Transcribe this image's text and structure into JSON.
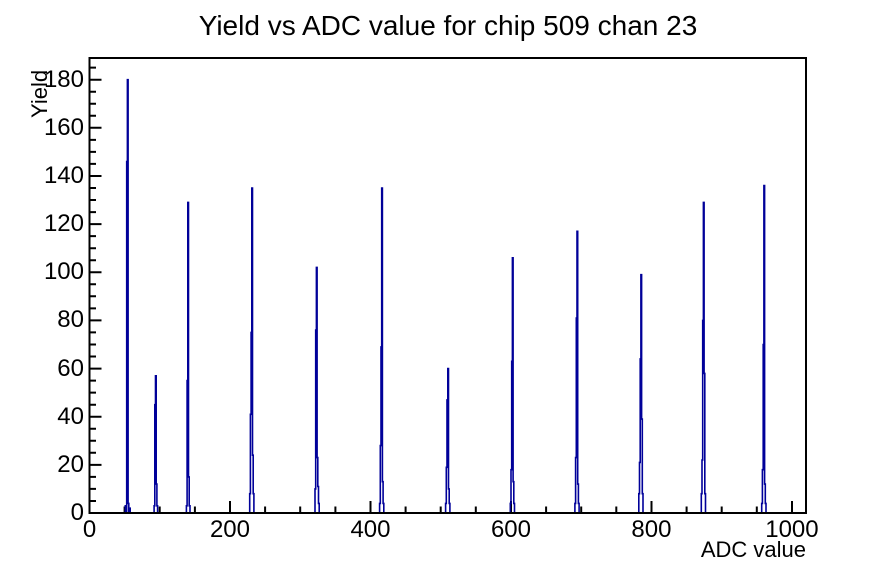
{
  "chart_data": {
    "type": "line",
    "subtype": "root-histogram",
    "title": "Yield vs ADC value for chip 509 chan 23",
    "xlabel": "ADC value",
    "ylabel": "Yield",
    "xlim": [
      0,
      1020
    ],
    "ylim": [
      0,
      189
    ],
    "x_major_ticks": [
      0,
      200,
      400,
      600,
      800,
      1000
    ],
    "x_minor_step": 50,
    "y_major_ticks": [
      0,
      20,
      40,
      60,
      80,
      100,
      120,
      140,
      160,
      180
    ],
    "y_minor_step": 5,
    "grid": "off",
    "legend": "none",
    "line_color": "#000099",
    "frame_color": "#000000",
    "background_color": "#ffffff",
    "peaks": [
      {
        "center": 54,
        "height": 180,
        "bins": [
          [
            51,
            3
          ],
          [
            53,
            146
          ],
          [
            54,
            180
          ],
          [
            55,
            4
          ],
          [
            57,
            2
          ]
        ]
      },
      {
        "center": 94,
        "height": 57,
        "bins": [
          [
            92,
            3
          ],
          [
            93,
            45
          ],
          [
            94,
            57
          ],
          [
            95,
            12
          ],
          [
            96,
            3
          ]
        ]
      },
      {
        "center": 140,
        "height": 129,
        "bins": [
          [
            138,
            3
          ],
          [
            139,
            55
          ],
          [
            140,
            129
          ],
          [
            141,
            15
          ],
          [
            142,
            3
          ]
        ]
      },
      {
        "center": 231,
        "height": 135,
        "bins": [
          [
            228,
            8
          ],
          [
            229,
            41
          ],
          [
            230,
            75
          ],
          [
            231,
            135
          ],
          [
            232,
            24
          ],
          [
            233,
            8
          ]
        ]
      },
      {
        "center": 323,
        "height": 102,
        "bins": [
          [
            321,
            10
          ],
          [
            322,
            76
          ],
          [
            323,
            102
          ],
          [
            324,
            23
          ],
          [
            325,
            11
          ],
          [
            326,
            4
          ]
        ]
      },
      {
        "center": 416,
        "height": 135,
        "bins": [
          [
            413,
            4
          ],
          [
            414,
            28
          ],
          [
            415,
            69
          ],
          [
            416,
            135
          ],
          [
            417,
            13
          ],
          [
            418,
            4
          ]
        ]
      },
      {
        "center": 510,
        "height": 60,
        "bins": [
          [
            507,
            4
          ],
          [
            508,
            19
          ],
          [
            509,
            47
          ],
          [
            510,
            60
          ],
          [
            511,
            10
          ],
          [
            512,
            4
          ]
        ]
      },
      {
        "center": 602,
        "height": 106,
        "bins": [
          [
            599,
            4
          ],
          [
            600,
            18
          ],
          [
            601,
            63
          ],
          [
            602,
            106
          ],
          [
            603,
            13
          ],
          [
            604,
            4
          ]
        ]
      },
      {
        "center": 694,
        "height": 117,
        "bins": [
          [
            691,
            4
          ],
          [
            692,
            23
          ],
          [
            693,
            81
          ],
          [
            694,
            117
          ],
          [
            695,
            12
          ],
          [
            696,
            4
          ]
        ]
      },
      {
        "center": 785,
        "height": 99,
        "bins": [
          [
            782,
            8
          ],
          [
            783,
            21
          ],
          [
            784,
            64
          ],
          [
            785,
            99
          ],
          [
            786,
            39
          ],
          [
            787,
            8
          ]
        ]
      },
      {
        "center": 874,
        "height": 129,
        "bins": [
          [
            871,
            8
          ],
          [
            872,
            22
          ],
          [
            873,
            80
          ],
          [
            874,
            129
          ],
          [
            875,
            58
          ],
          [
            876,
            8
          ]
        ]
      },
      {
        "center": 960,
        "height": 136,
        "bins": [
          [
            957,
            4
          ],
          [
            958,
            18
          ],
          [
            959,
            70
          ],
          [
            960,
            136
          ],
          [
            961,
            12
          ],
          [
            962,
            4
          ]
        ]
      }
    ]
  }
}
